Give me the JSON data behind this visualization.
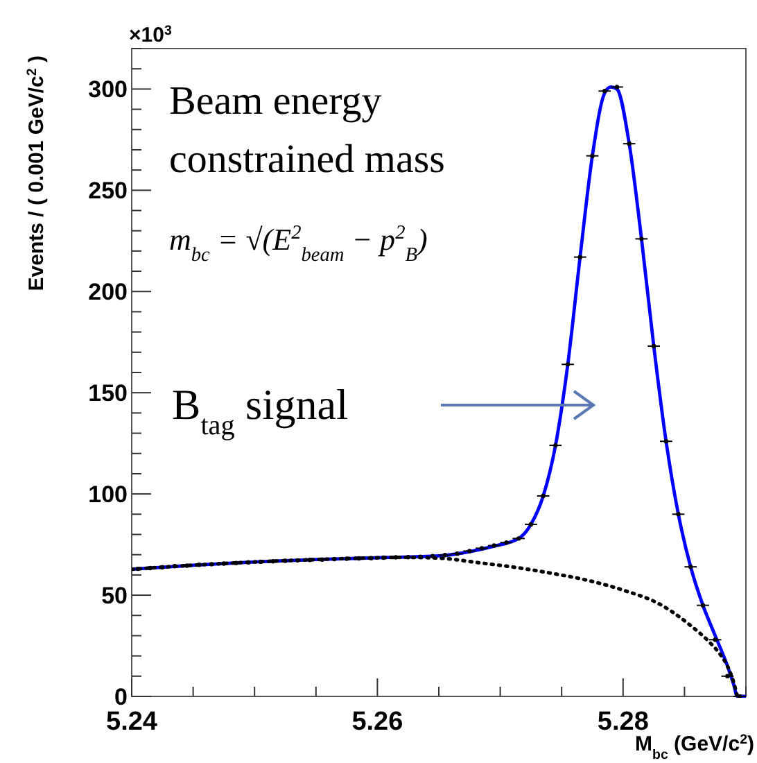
{
  "chart_data": {
    "type": "scatter",
    "xlabel": "M$_{bc}$ (GeV/c$^{2}$)",
    "ylabel": "Events / ( 0.001 GeV/c$^{2}$ )",
    "xlim": [
      5.24,
      5.29
    ],
    "ylim": [
      0,
      320
    ],
    "xticks": [
      5.24,
      {
        "value": 5.245,
        "label": null
      },
      {
        "value": 5.25,
        "label": null
      },
      {
        "value": 5.255,
        "label": null
      },
      5.26,
      {
        "value": 5.265,
        "label": null
      },
      {
        "value": 5.27,
        "label": null
      },
      {
        "value": 5.275,
        "label": null
      },
      5.28,
      {
        "value": 5.285,
        "label": null
      },
      {
        "value": 5.29,
        "label": null
      }
    ],
    "yticks": [
      0,
      {
        "value": 10,
        "label": null
      },
      {
        "value": 20,
        "label": null
      },
      {
        "value": 30,
        "label": null
      },
      {
        "value": 40,
        "label": null
      },
      50,
      {
        "value": 60,
        "label": null
      },
      {
        "value": 70,
        "label": null
      },
      {
        "value": 80,
        "label": null
      },
      {
        "value": 90,
        "label": null
      },
      100,
      {
        "value": 110,
        "label": null
      },
      {
        "value": 120,
        "label": null
      },
      {
        "value": 130,
        "label": null
      },
      {
        "value": 140,
        "label": null
      },
      150,
      {
        "value": 160,
        "label": null
      },
      {
        "value": 170,
        "label": null
      },
      {
        "value": 180,
        "label": null
      },
      {
        "value": 190,
        "label": null
      },
      200,
      {
        "value": 210,
        "label": null
      },
      {
        "value": 220,
        "label": null
      },
      {
        "value": 230,
        "label": null
      },
      {
        "value": 240,
        "label": null
      },
      250,
      {
        "value": 260,
        "label": null
      },
      {
        "value": 270,
        "label": null
      },
      {
        "value": 280,
        "label": null
      },
      {
        "value": 290,
        "label": null
      },
      300,
      {
        "value": 310,
        "label": null
      },
      {
        "value": 320,
        "label": null
      }
    ],
    "grid": false,
    "series": [
      {
        "color": "#000000",
        "marker": "circle",
        "x": [
          5.2405,
          5.2415,
          5.2425,
          5.2435,
          5.2445,
          5.2455,
          5.2465,
          5.2475,
          5.2485,
          5.2495,
          5.2505,
          5.2515,
          5.2525,
          5.2535,
          5.2545,
          5.2555,
          5.2565,
          5.2575,
          5.2585,
          5.2595,
          5.2605,
          5.2615,
          5.2625,
          5.2635,
          5.2645,
          5.2655,
          5.2665,
          5.2675,
          5.2685,
          5.2695,
          5.2705,
          5.2715,
          5.2725,
          5.2735,
          5.2745,
          5.2755,
          5.2765,
          5.2775,
          5.2785,
          5.2795,
          5.2805,
          5.2815,
          5.2825,
          5.2835,
          5.2845,
          5.2855,
          5.2865,
          5.2875,
          5.2885,
          5.2895
        ],
        "values": [
          63,
          63.4,
          63.8,
          64.3,
          64.6,
          65,
          65.3,
          65.6,
          65.9,
          66.2,
          66.5,
          66.7,
          67,
          67.2,
          67.4,
          67.6,
          67.8,
          68,
          68.2,
          68.3,
          68.5,
          68.7,
          68.8,
          69,
          69.3,
          69.8,
          70.5,
          71.8,
          73.2,
          74.5,
          76,
          78,
          85,
          99,
          124,
          164,
          217,
          267,
          299,
          301,
          273,
          226,
          173,
          126,
          90,
          64,
          45,
          28,
          10,
          0
        ],
        "xerrors": [
          null,
          null,
          null,
          null,
          null,
          null,
          null,
          null,
          null,
          null,
          null,
          null,
          null,
          null,
          null,
          null,
          null,
          null,
          null,
          null,
          null,
          null,
          null,
          null,
          null,
          0.0005,
          0.0005,
          0.0005,
          0.0005,
          0.0005,
          0.0005,
          0.0005,
          0.0005,
          0.0005,
          0.0005,
          0.0005,
          0.0005,
          0.0005,
          0.0005,
          0.0005,
          0.0005,
          0.0005,
          0.0005,
          0.0005,
          0.0005,
          0.0005,
          0.0005,
          0.0005,
          0.0005,
          0.0005
        ]
      },
      {
        "type": "line",
        "color": "#0000ff",
        "marker": "none",
        "line_style": "solid",
        "x": [
          5.24,
          5.245,
          5.25,
          5.255,
          5.26,
          5.265,
          5.2675,
          5.2695,
          5.2715,
          5.2725,
          5.2735,
          5.2745,
          5.2755,
          5.2765,
          5.2775,
          5.2785,
          5.279,
          5.2795,
          5.2805,
          5.2815,
          5.2825,
          5.2835,
          5.2845,
          5.2855,
          5.2865,
          5.2875,
          5.2885,
          5.289,
          5.2893,
          5.29
        ],
        "values": [
          62.8,
          64.8,
          66.4,
          67.6,
          68.5,
          69.4,
          71.5,
          74.2,
          78,
          85,
          99,
          124,
          164,
          217,
          267,
          298,
          301,
          300,
          273,
          226,
          173,
          126,
          90,
          64,
          45,
          30,
          15,
          6,
          0,
          0
        ]
      },
      {
        "type": "line",
        "color": "#000000",
        "marker": "none",
        "line_style": "dotted",
        "x": [
          5.24,
          5.245,
          5.25,
          5.255,
          5.26,
          5.262,
          5.265,
          5.2683,
          5.2715,
          5.274,
          5.277,
          5.28,
          5.283,
          5.2855,
          5.287,
          5.288,
          5.2885,
          5.289,
          5.2893
        ],
        "values": [
          62.8,
          64.8,
          66.4,
          67.6,
          68.5,
          68.7,
          68.3,
          66,
          63.5,
          61,
          57.5,
          52.5,
          45.5,
          35,
          27,
          20,
          15,
          7,
          0
        ]
      }
    ],
    "annotations": [
      "×10$^{3}$",
      "Beam energy",
      "constrained mass",
      "m$_{bc}$ = √(E$^{2}$$_{beam}$ − p$^{2}$$_{B}$)",
      "B$_{tag}$ signal"
    ]
  }
}
